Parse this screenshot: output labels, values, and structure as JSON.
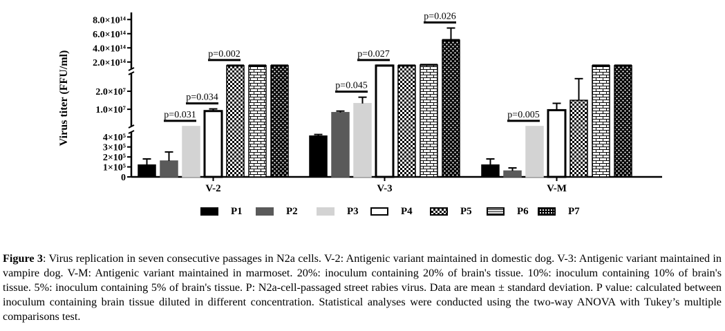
{
  "chart_data": {
    "type": "bar",
    "title": "",
    "ylabel": "Virus titer (FFU/ml)",
    "xlabel": "",
    "categories": [
      "V-2",
      "V-3",
      "V-M"
    ],
    "y_axis_segments": [
      {
        "range": [
          0,
          450000
        ],
        "ticks": [
          {
            "value": 0,
            "label": "0"
          },
          {
            "value": 100000,
            "label": "1×10⁵"
          },
          {
            "value": 200000,
            "label": "2×10⁵"
          },
          {
            "value": 300000,
            "label": "3×10⁵"
          },
          {
            "value": 400000,
            "label": "4×10⁵"
          }
        ]
      },
      {
        "range": [
          450000,
          30000000
        ],
        "ticks": [
          {
            "value": 10000000,
            "label": "1.0×10⁷"
          },
          {
            "value": 20000000,
            "label": "2.0×10⁷"
          }
        ]
      },
      {
        "range": [
          100000000000000,
          900000000000000
        ],
        "ticks": [
          {
            "value": 200000000000000,
            "label": "2.0×10¹⁴"
          },
          {
            "value": 400000000000000,
            "label": "4.0×10¹⁴"
          },
          {
            "value": 600000000000000,
            "label": "6.0×10¹⁴"
          },
          {
            "value": 800000000000000,
            "label": "8.0×10¹⁴"
          }
        ]
      }
    ],
    "series": [
      {
        "name": "P1",
        "pattern": "solid-black",
        "values": [
          120000,
          410000,
          120000
        ],
        "errors": [
          60000,
          15000,
          60000
        ]
      },
      {
        "name": "P2",
        "pattern": "solid-gray",
        "values": [
          160000,
          8200000,
          60000
        ],
        "errors": [
          90000,
          800000,
          30000
        ]
      },
      {
        "name": "P3",
        "pattern": "light-gray",
        "values": [
          480000,
          13200000,
          480000
        ],
        "errors": [
          0,
          3500000,
          0
        ]
      },
      {
        "name": "P4",
        "pattern": "white",
        "values": [
          9000000,
          150000000000000,
          9500000
        ],
        "errors": [
          1200000,
          0,
          3800000
        ]
      },
      {
        "name": "P5",
        "pattern": "checker",
        "values": [
          150000000000000,
          150000000000000,
          15000000
        ],
        "errors": [
          0,
          0,
          12000000
        ]
      },
      {
        "name": "P6",
        "pattern": "brick",
        "values": [
          150000000000000,
          160000000000000,
          150000000000000
        ],
        "errors": [
          0,
          0,
          0
        ]
      },
      {
        "name": "P7",
        "pattern": "dots",
        "values": [
          150000000000000,
          510000000000000,
          150000000000000
        ],
        "errors": [
          0,
          170000000000000,
          0
        ]
      }
    ],
    "annotations": [
      {
        "text": "p=0.031",
        "group": 0,
        "from": 1,
        "to": 2
      },
      {
        "text": "p=0.034",
        "group": 0,
        "from": 2,
        "to": 3
      },
      {
        "text": "p=0.002",
        "group": 0,
        "from": 3,
        "to": 4
      },
      {
        "text": "p=0.045",
        "group": 1,
        "from": 1,
        "to": 2
      },
      {
        "text": "p=0.027",
        "group": 1,
        "from": 2,
        "to": 3
      },
      {
        "text": "p=0.026",
        "group": 1,
        "from": 5,
        "to": 6
      },
      {
        "text": "p=0.005",
        "group": 2,
        "from": 1,
        "to": 2
      }
    ],
    "legend_position": "bottom"
  },
  "legend": [
    {
      "label": "P1",
      "color": "#000000"
    },
    {
      "label": "P2",
      "color": "#5a5a5a"
    },
    {
      "label": "P3",
      "color": "#d3d3d3"
    },
    {
      "label": "P4",
      "color": "#ffffff"
    },
    {
      "label": "P5",
      "color": "#ffffff"
    },
    {
      "label": "P6",
      "color": "#ffffff"
    },
    {
      "label": "P7",
      "color": "#ffffff"
    }
  ],
  "caption": {
    "label": "Figure 3",
    "text": ": Virus replication in seven consecutive passages in N2a cells. V-2: Antigenic variant maintained in domestic dog. V-3: Antigenic variant maintained in vampire dog. V-M: Antigenic variant maintained in marmoset. 20%: inoculum containing 20% of brain's tissue. 10%: inoculum containing 10% of brain's tissue. 5%: inoculum containing 5% of brain's tissue. P: N2a-cell-passaged street rabies virus. Data are mean ± standard deviation. P value: calculated between inoculum containing brain tissue diluted in different concentration. Statistical analyses were conducted using the two-way ANOVA with Tukey’s multiple comparisons test."
  }
}
